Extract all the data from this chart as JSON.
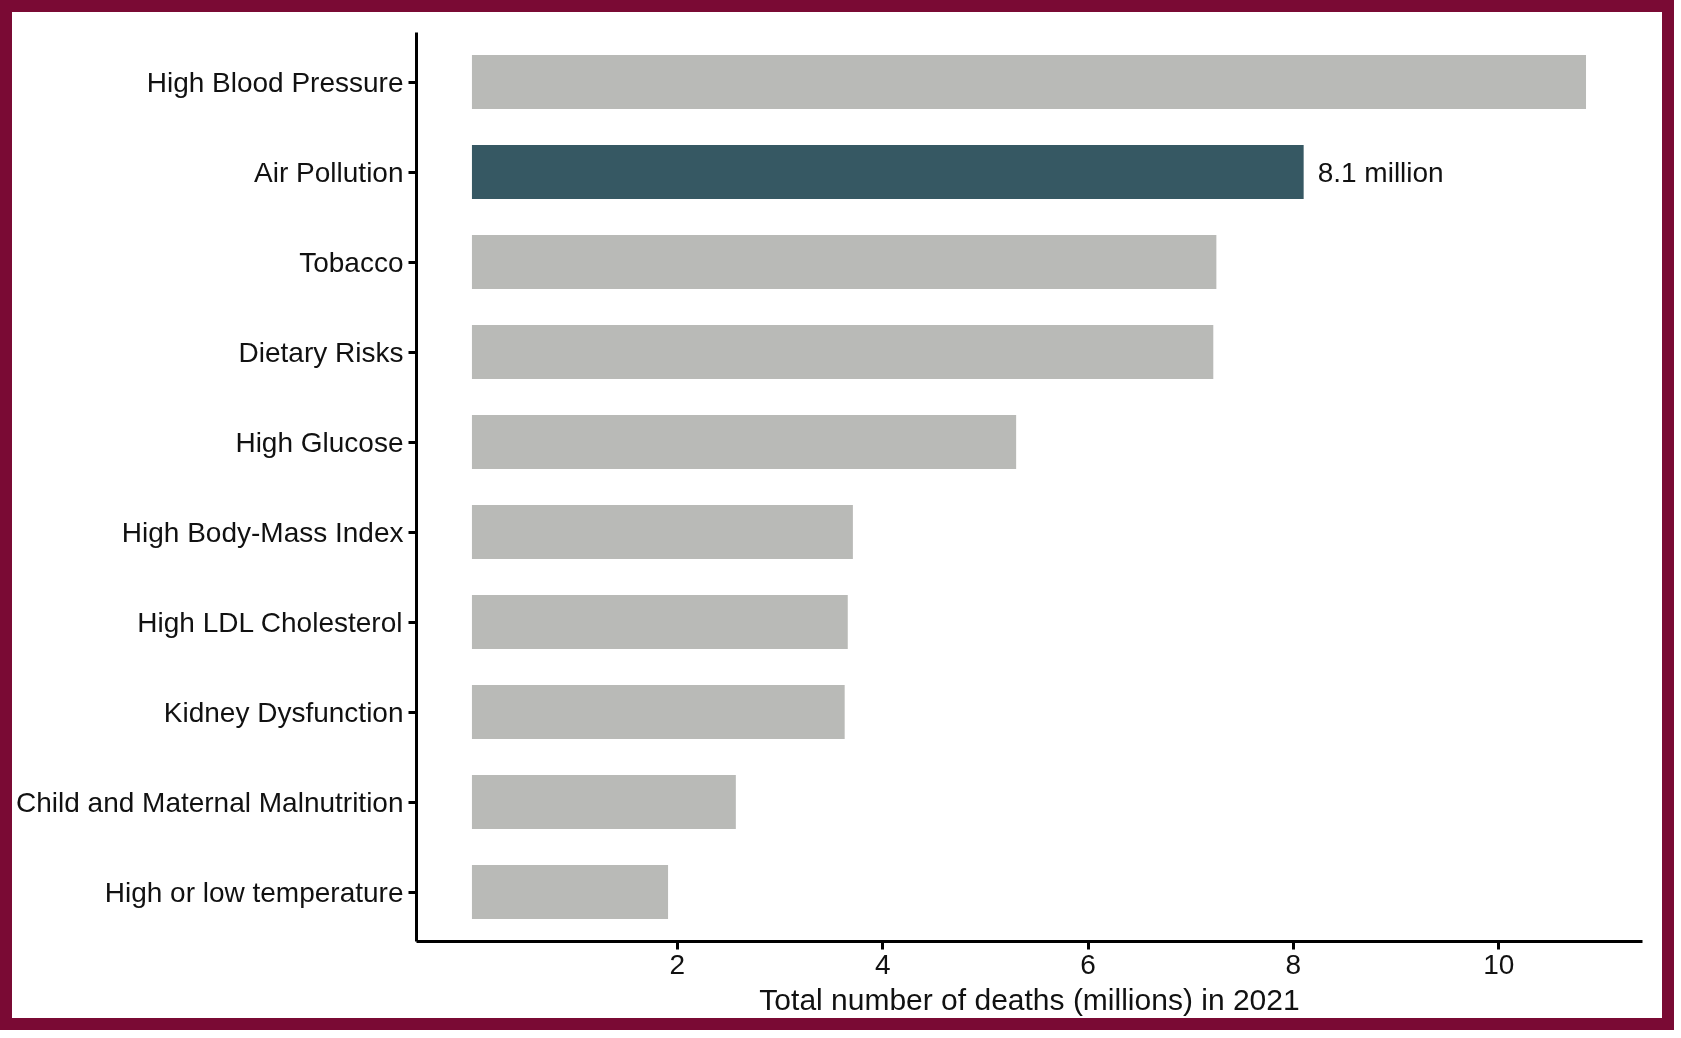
{
  "chart_data": {
    "type": "bar",
    "orientation": "horizontal",
    "xlabel": "Total number of deaths (millions) in 2021",
    "categories": [
      "High Blood Pressure",
      "Air Pollution",
      "Tobacco",
      "Dietary Risks",
      "High Glucose",
      "High Body-Mass Index",
      "High LDL Cholesterol",
      "Kidney Dysfunction",
      "Child and Maternal Malnutrition",
      "High or low temperature"
    ],
    "values": [
      10.85,
      8.1,
      7.25,
      7.22,
      5.3,
      3.71,
      3.66,
      3.63,
      2.57,
      1.91
    ],
    "colors": [
      "#b9bab7",
      "#365863",
      "#b9bab7",
      "#b9bab7",
      "#b9bab7",
      "#b9bab7",
      "#b9bab7",
      "#b9bab7",
      "#b9bab7",
      "#b9bab7"
    ],
    "value_labels": [
      null,
      "8.1 million",
      null,
      null,
      null,
      null,
      null,
      null,
      null,
      null
    ],
    "xlim": [
      -0.54,
      11.4
    ],
    "xticks": [
      2,
      4,
      6,
      8,
      10
    ],
    "grid": false
  }
}
